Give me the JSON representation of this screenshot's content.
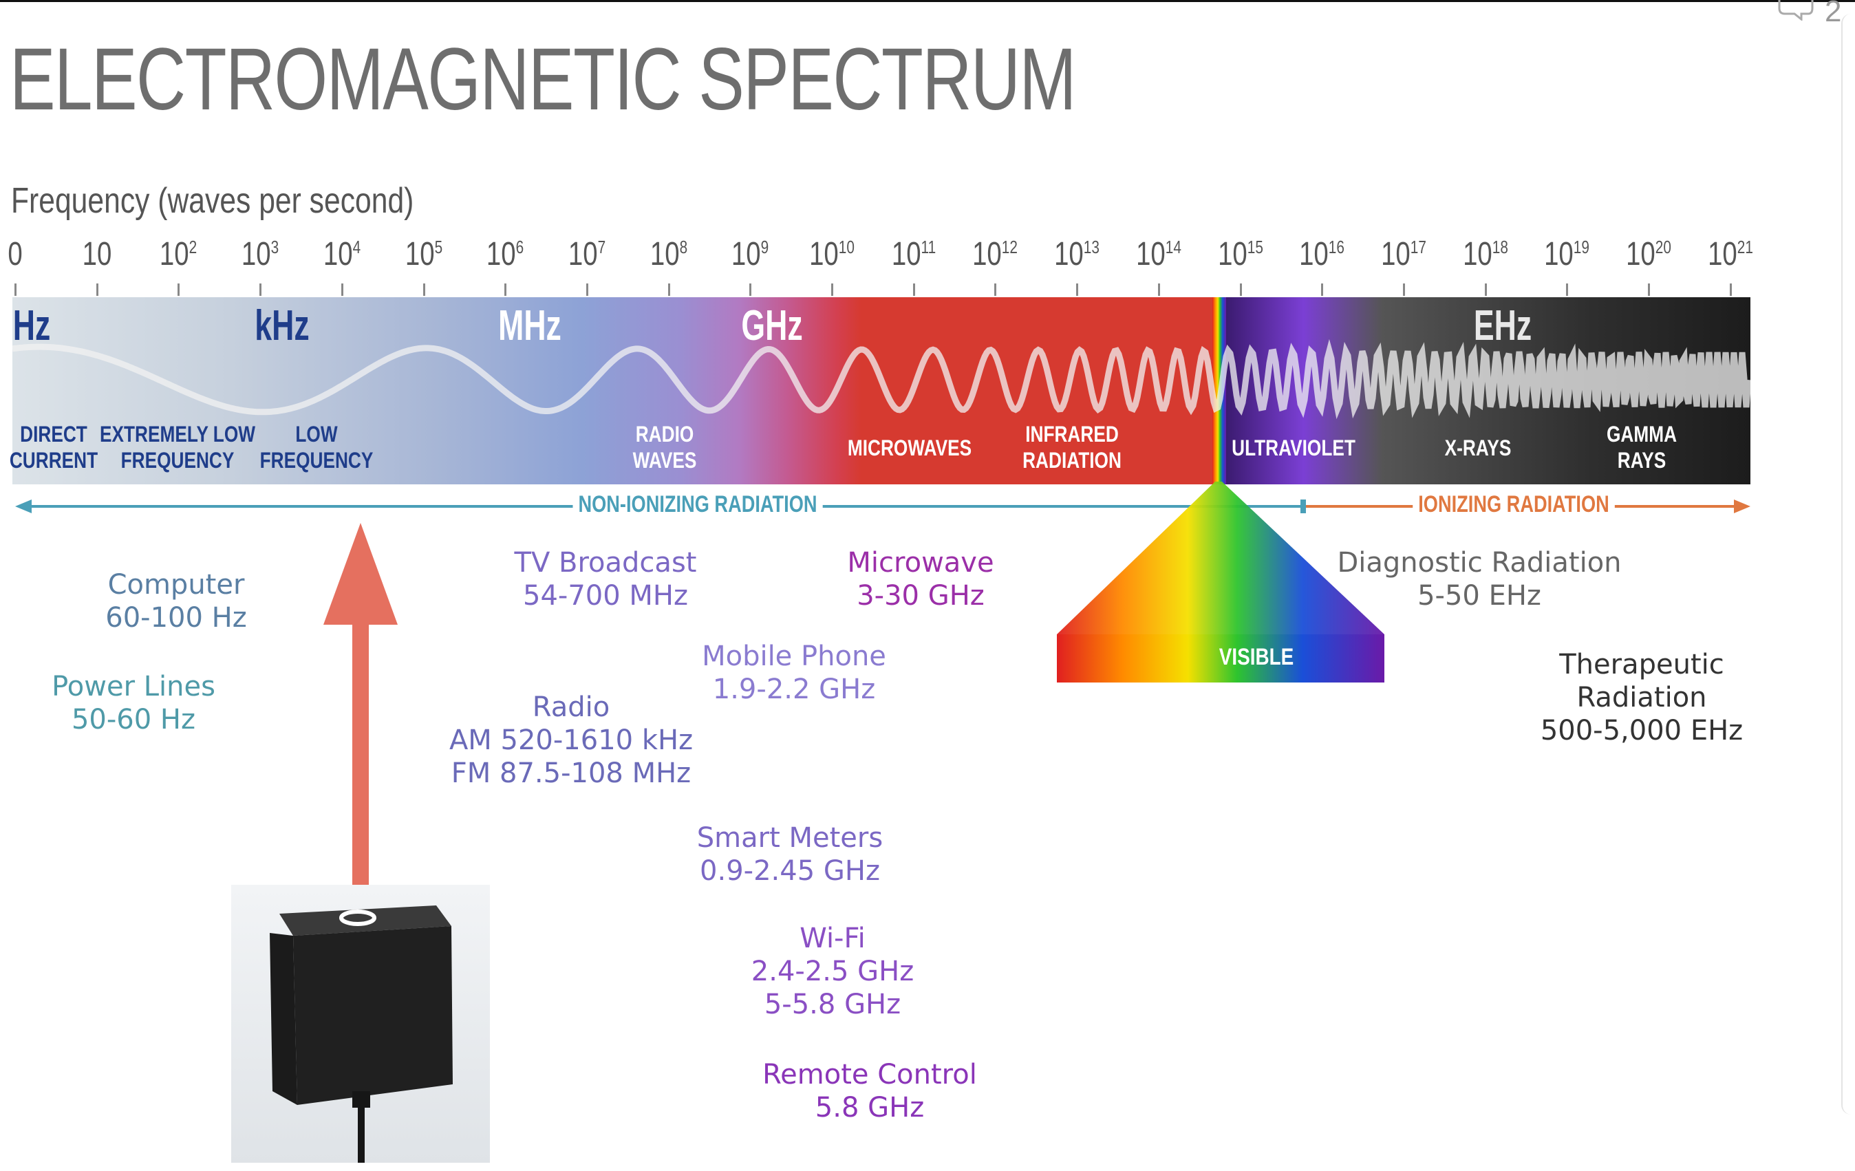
{
  "title": "ELECTROMAGNETIC SPECTRUM",
  "frequency_axis_label": "Frequency (waves per second)",
  "page_count": "2",
  "ticks": [
    {
      "base": "0",
      "exp": ""
    },
    {
      "base": "10",
      "exp": ""
    },
    {
      "base": "10",
      "exp": "2"
    },
    {
      "base": "10",
      "exp": "3"
    },
    {
      "base": "10",
      "exp": "4"
    },
    {
      "base": "10",
      "exp": "5"
    },
    {
      "base": "10",
      "exp": "6"
    },
    {
      "base": "10",
      "exp": "7"
    },
    {
      "base": "10",
      "exp": "8"
    },
    {
      "base": "10",
      "exp": "9"
    },
    {
      "base": "10",
      "exp": "10"
    },
    {
      "base": "10",
      "exp": "11"
    },
    {
      "base": "10",
      "exp": "12"
    },
    {
      "base": "10",
      "exp": "13"
    },
    {
      "base": "10",
      "exp": "14"
    },
    {
      "base": "10",
      "exp": "15"
    },
    {
      "base": "10",
      "exp": "16"
    },
    {
      "base": "10",
      "exp": "17"
    },
    {
      "base": "10",
      "exp": "18"
    },
    {
      "base": "10",
      "exp": "19"
    },
    {
      "base": "10",
      "exp": "20"
    },
    {
      "base": "10",
      "exp": "21"
    }
  ],
  "units": [
    "Hz",
    "kHz",
    "MHz",
    "GHz",
    "EHz"
  ],
  "regions": [
    "DIRECT\nCURRENT",
    "EXTREMELY LOW\nFREQUENCY",
    "LOW\nFREQUENCY",
    "RADIO\nWAVES",
    "MICROWAVES",
    "INFRARED\nRADIATION",
    "ULTRAVIOLET",
    "X-RAYS",
    "GAMMA\nRAYS"
  ],
  "visible_label": "VISIBLE",
  "non_ionizing_label": "NON-IONIZING RADIATION",
  "ionizing_label": "IONIZING RADIATION",
  "applications": [
    {
      "text": "Computer\n60-100 Hz",
      "color": "#5a7fa3"
    },
    {
      "text": "Power Lines\n50-60 Hz",
      "color": "#4f9aa8"
    },
    {
      "text": "TV Broadcast\n54-700 MHz",
      "color": "#7b68c4"
    },
    {
      "text": "Radio\nAM 520-1610 kHz\nFM 87.5-108 MHz",
      "color": "#6a6ab8"
    },
    {
      "text": "Microwave\n3-30 GHz",
      "color": "#9b2fa8"
    },
    {
      "text": "Mobile Phone\n1.9-2.2 GHz",
      "color": "#8a7bd0"
    },
    {
      "text": "Smart Meters\n0.9-2.45 GHz",
      "color": "#7b68c4"
    },
    {
      "text": "Wi-Fi\n2.4-2.5 GHz\n5-5.8 GHz",
      "color": "#8a4fc4"
    },
    {
      "text": "Remote Control\n5.8 GHz",
      "color": "#8a35b8"
    },
    {
      "text": "Diagnostic Radiation\n5-50 EHz",
      "color": "#666666"
    },
    {
      "text": "Therapeutic\nRadiation\n500-5,000 EHz",
      "color": "#333333"
    }
  ],
  "colors": {
    "non_ionizing": "#4a9fb8",
    "ionizing": "#e07840",
    "arrow": "#e5705f",
    "title": "#6e6e6e"
  }
}
